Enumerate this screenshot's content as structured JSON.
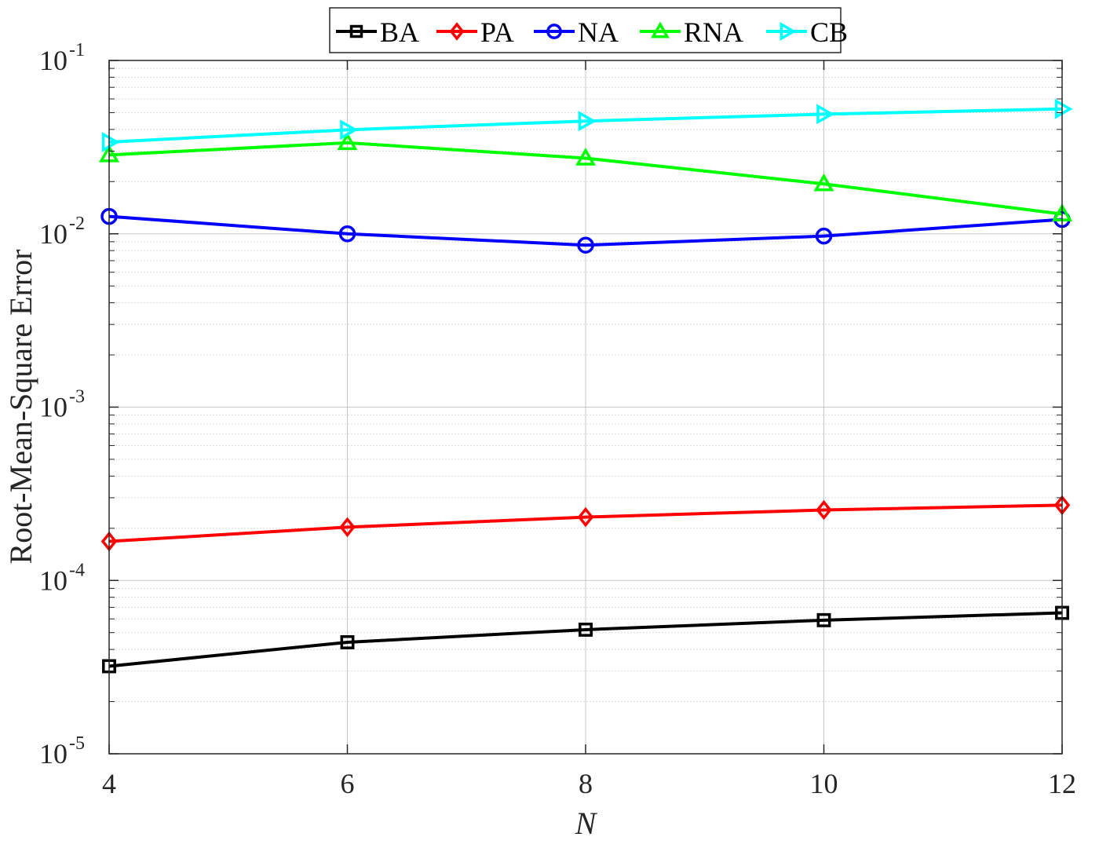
{
  "chart_data": {
    "type": "line",
    "title": "",
    "xlabel": "N",
    "ylabel": "Root-Mean-Square Error",
    "yscale": "log",
    "x": [
      4,
      6,
      8,
      10,
      12
    ],
    "xlim": [
      4,
      12
    ],
    "ylim": [
      1e-05,
      0.1
    ],
    "xticks": [
      "4",
      "6",
      "8",
      "10",
      "12"
    ],
    "yticks": [
      {
        "base": "10",
        "exp": "-5"
      },
      {
        "base": "10",
        "exp": "-4"
      },
      {
        "base": "10",
        "exp": "-3"
      },
      {
        "base": "10",
        "exp": "-2"
      },
      {
        "base": "10",
        "exp": "-1"
      }
    ],
    "grid": true,
    "legend_position": "top-center",
    "series": [
      {
        "name": "BA",
        "color": "#000000",
        "marker": "square",
        "values": [
          3.2e-05,
          4.4e-05,
          5.2e-05,
          5.9e-05,
          6.5e-05
        ]
      },
      {
        "name": "PA",
        "color": "#ff0000",
        "marker": "diamond",
        "values": [
          0.000168,
          0.000203,
          0.000232,
          0.000255,
          0.000272
        ]
      },
      {
        "name": "NA",
        "color": "#0000ff",
        "marker": "circle",
        "values": [
          0.0126,
          0.01,
          0.0086,
          0.0097,
          0.0121
        ]
      },
      {
        "name": "RNA",
        "color": "#00ff00",
        "marker": "triangle-up",
        "values": [
          0.0285,
          0.0335,
          0.0273,
          0.0194,
          0.013
        ]
      },
      {
        "name": "CB",
        "color": "#00ffff",
        "marker": "triangle-right",
        "values": [
          0.0338,
          0.0398,
          0.0447,
          0.049,
          0.0525
        ]
      }
    ]
  }
}
